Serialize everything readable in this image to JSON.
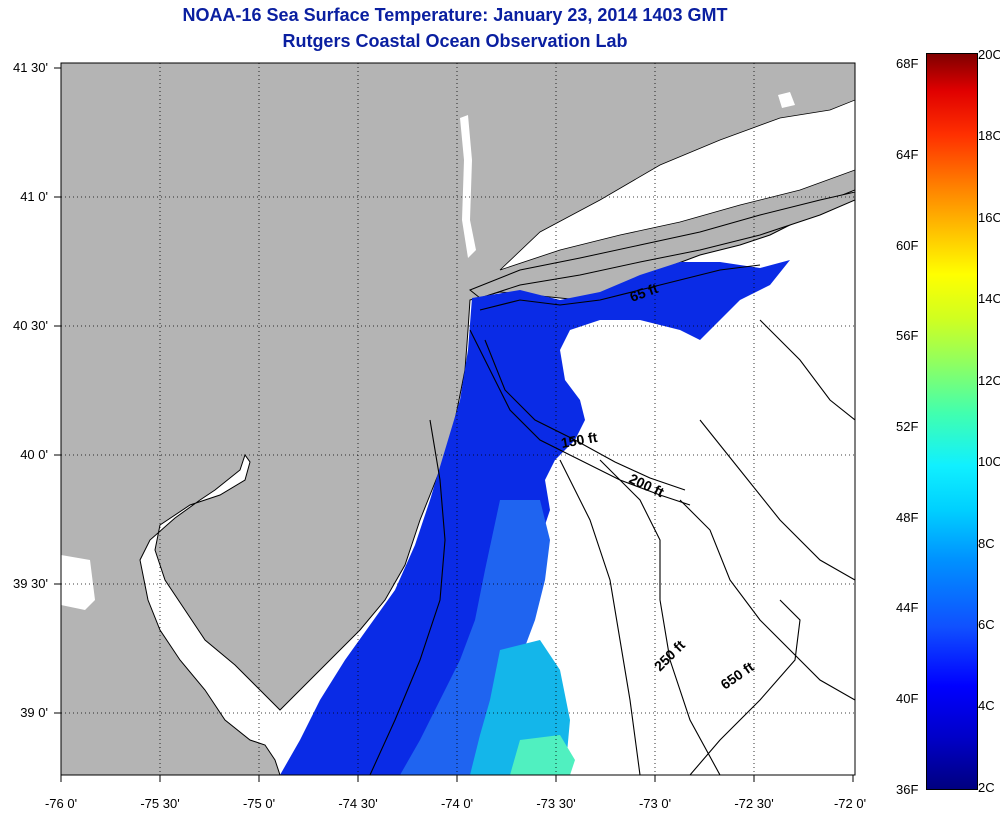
{
  "title": "NOAA-16 Sea Surface Temperature:  January 23, 2014 1403 GMT",
  "subtitle": "Rutgers Coastal Ocean Observation Lab",
  "map": {
    "lon_ticks": [
      "-76 0'",
      "-75 30'",
      "-75 0'",
      "-74 30'",
      "-74 0'",
      "-73 30'",
      "-73 0'",
      "-72 30'",
      "-72 0'"
    ],
    "lat_ticks": [
      "41 30'",
      "41 0'",
      "40 30'",
      "40 0'",
      "39 30'",
      "39 0'"
    ],
    "isobath_labels": [
      "65 ft",
      "150 ft",
      "200 ft",
      "250 ft",
      "650 ft"
    ],
    "colors": {
      "land": "#b4b4b4",
      "cloud_or_nodata": "#ffffff",
      "water_cold": "#0a2be6"
    }
  },
  "colorbar": {
    "fahrenheit_labels": [
      "68F",
      "64F",
      "60F",
      "56F",
      "52F",
      "48F",
      "44F",
      "40F",
      "36F"
    ],
    "celsius_labels": [
      "20C",
      "18C",
      "16C",
      "14C",
      "12C",
      "10C",
      "8C",
      "6C",
      "4C",
      "2C"
    ],
    "range_c": [
      2,
      20
    ],
    "range_f": [
      36,
      68
    ]
  }
}
